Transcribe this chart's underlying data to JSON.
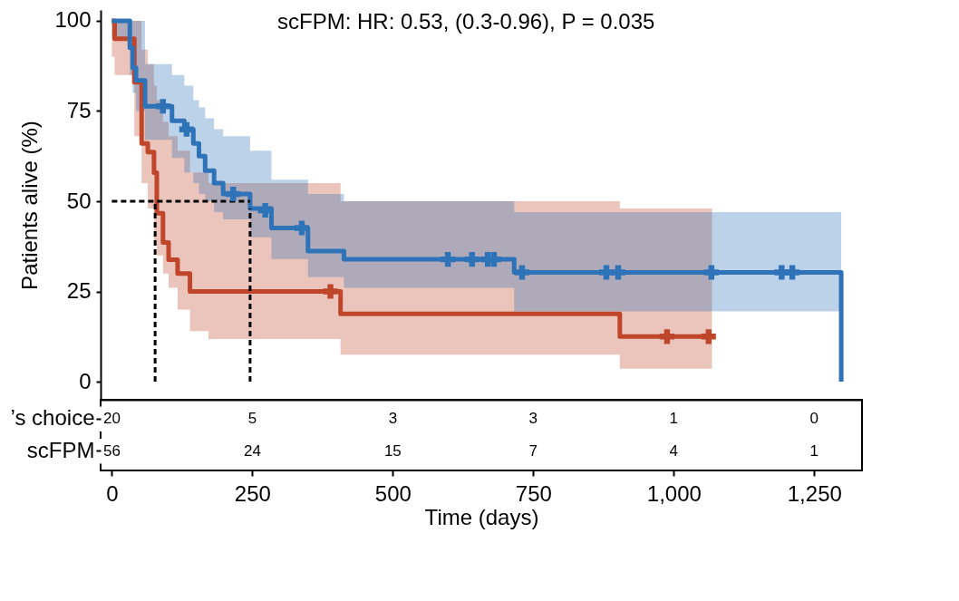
{
  "chart_data": [
    {
      "type": "step",
      "xlabel": "Time (days)",
      "ylabel": "Patients alive (%)",
      "xlim": [
        -20,
        1335
      ],
      "ylim": [
        -5,
        103
      ],
      "xticks": [
        0,
        250,
        500,
        750,
        {
          "value": 1000,
          "label": "1,000"
        },
        {
          "value": 1250,
          "label": "1,250"
        }
      ],
      "yticks": [
        0,
        25,
        50,
        75,
        100
      ],
      "grid": false,
      "annotations": [
        "scFPM: HR: 0.53, (0.3-0.96), P = 0.035"
      ],
      "series": [
        {
          "type": "step",
          "color": "#c0462b",
          "x": [
            0,
            5,
            40,
            53,
            64,
            75,
            80,
            91,
            101,
            117,
            139,
            172,
            407,
            904,
            1068
          ],
          "values": [
            100,
            95,
            83,
            66,
            63.6,
            57.9,
            46.7,
            38.6,
            33.8,
            30,
            25,
            25,
            18.8,
            12.5,
            12.5
          ],
          "lower": [
            90,
            85,
            68,
            55,
            48,
            38,
            35,
            30,
            26,
            20,
            14,
            11.8,
            7.5,
            3.6,
            3.6
          ],
          "upper": [
            100,
            100,
            100,
            92,
            88,
            82,
            78,
            72,
            68,
            64,
            58,
            55,
            50,
            48,
            48
          ]
        },
        {
          "type": "step",
          "color": "#2e72b8",
          "x": [
            0,
            32,
            37,
            43,
            59,
            107,
            129,
            145,
            155,
            166,
            182,
            198,
            246,
            284,
            349,
            413,
            716,
            1298
          ],
          "values": [
            100,
            92.5,
            87,
            83.5,
            76.3,
            72.3,
            69.9,
            66,
            62.5,
            58.5,
            55,
            52,
            48,
            42.6,
            36.2,
            33.9,
            30.3,
            0
          ],
          "lower": [
            95,
            85,
            80,
            75,
            67,
            62,
            58,
            55,
            52,
            50,
            47,
            45,
            40,
            34,
            29,
            26,
            19.5,
            19.5
          ],
          "upper": [
            100,
            100,
            100,
            100,
            88,
            85,
            82,
            78,
            76,
            73,
            70,
            68,
            64,
            56,
            52,
            50,
            47,
            47
          ]
        },
        {
          "type": "scatter",
          "marker": "cross",
          "color": "#c0462b",
          "x": [
            389,
            988,
            1062
          ],
          "values": [
            25,
            12.5,
            12.5
          ]
        },
        {
          "type": "scatter",
          "marker": "cross",
          "color": "#2e72b8",
          "x": [
            91,
            133,
            216,
            273,
            338,
            598,
            641,
            669,
            680,
            730,
            880,
            901,
            1067,
            1192,
            1211
          ],
          "values": [
            76.3,
            69.9,
            52,
            47.5,
            42.6,
            33.9,
            33.9,
            33.9,
            33.9,
            30.3,
            30.3,
            30.3,
            30.3,
            30.3,
            30.3
          ]
        },
        {
          "type": "line",
          "color": "#000000",
          "line_style": "dashed",
          "x": [
            0,
            246
          ],
          "values": [
            50,
            50
          ]
        },
        {
          "type": "line",
          "color": "#000000",
          "line_style": "dashed",
          "x": [
            77,
            77
          ],
          "values": [
            0,
            50
          ]
        },
        {
          "type": "line",
          "color": "#000000",
          "line_style": "dashed",
          "x": [
            246,
            246
          ],
          "values": [
            0,
            48
          ]
        }
      ]
    },
    {
      "type": "heatmap",
      "categories": [
        null,
        null,
        null,
        null,
        null,
        null
      ],
      "y_categories": [
        "’s choice",
        "scFPM"
      ],
      "tick_labels": "y",
      "data_labels": true,
      "cells": [
        [
          20,
          5,
          3,
          3,
          1,
          0
        ],
        [
          56,
          24,
          15,
          7,
          4,
          1
        ]
      ]
    }
  ]
}
